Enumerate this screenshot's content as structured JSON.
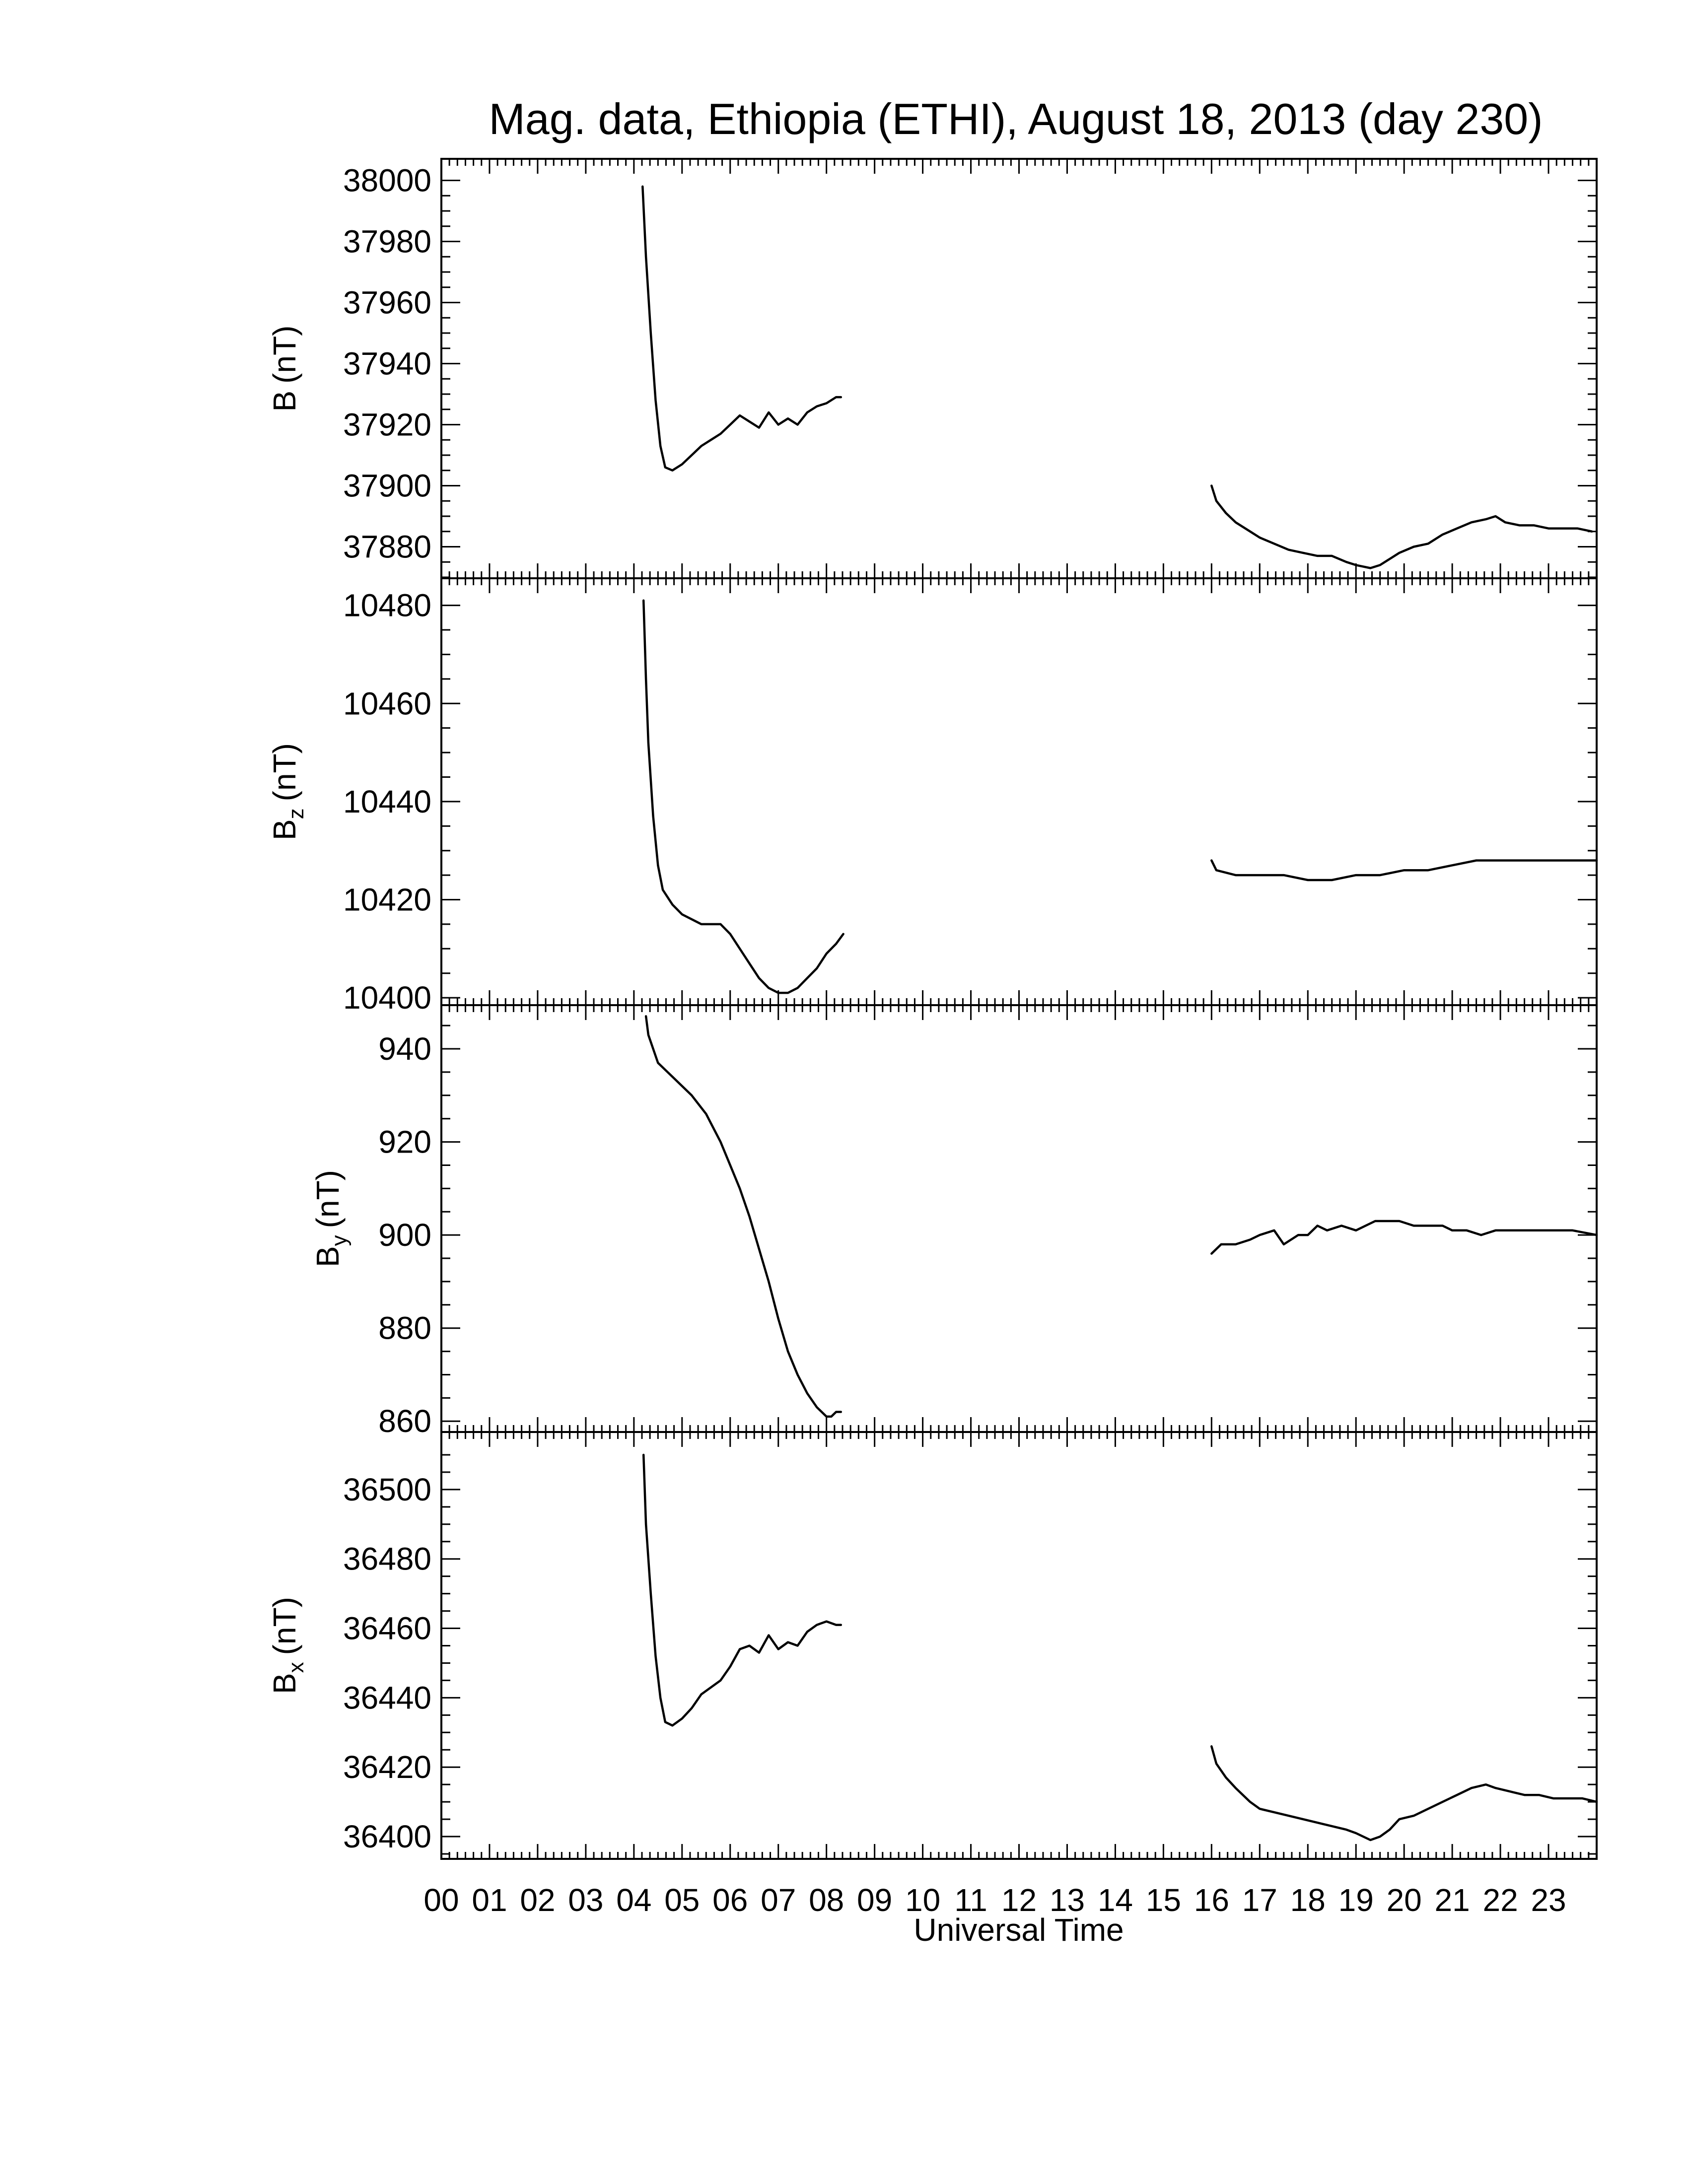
{
  "title": "Mag. data, Ethiopia (ETHI), August 18, 2013 (day 230)",
  "xlabel": "Universal Time",
  "colors": {
    "background": "#ffffff",
    "line": "#000000"
  },
  "chart_data": [
    {
      "type": "line",
      "name": "B",
      "ylabel": "B (nT)",
      "ylabel_main": "B",
      "ylabel_sub": "",
      "ylabel_unit": "(nT)",
      "xlim": [
        0,
        24
      ],
      "ylim": [
        37870,
        38003
      ],
      "yticks": [
        37880,
        37900,
        37920,
        37940,
        37960,
        37980,
        38000
      ],
      "y_minor_step": 5,
      "segments": [
        [
          [
            4.18,
            37998
          ],
          [
            4.25,
            37975
          ],
          [
            4.35,
            37950
          ],
          [
            4.45,
            37928
          ],
          [
            4.55,
            37913
          ],
          [
            4.65,
            37906
          ],
          [
            4.8,
            37905
          ],
          [
            5.0,
            37907
          ],
          [
            5.2,
            37910
          ],
          [
            5.4,
            37913
          ],
          [
            5.6,
            37915
          ],
          [
            5.8,
            37917
          ],
          [
            6.0,
            37920
          ],
          [
            6.2,
            37923
          ],
          [
            6.4,
            37921
          ],
          [
            6.6,
            37919
          ],
          [
            6.8,
            37924
          ],
          [
            7.0,
            37920
          ],
          [
            7.2,
            37922
          ],
          [
            7.4,
            37920
          ],
          [
            7.6,
            37924
          ],
          [
            7.8,
            37926
          ],
          [
            8.0,
            37927
          ],
          [
            8.2,
            37929
          ],
          [
            8.3,
            37929
          ]
        ],
        [
          [
            16.0,
            37900
          ],
          [
            16.1,
            37895
          ],
          [
            16.3,
            37891
          ],
          [
            16.5,
            37888
          ],
          [
            16.8,
            37885
          ],
          [
            17.0,
            37883
          ],
          [
            17.3,
            37881
          ],
          [
            17.6,
            37879
          ],
          [
            17.9,
            37878
          ],
          [
            18.2,
            37877
          ],
          [
            18.5,
            37877
          ],
          [
            18.8,
            37875
          ],
          [
            19.0,
            37874
          ],
          [
            19.3,
            37873
          ],
          [
            19.5,
            37874
          ],
          [
            19.7,
            37876
          ],
          [
            19.9,
            37878
          ],
          [
            20.2,
            37880
          ],
          [
            20.5,
            37881
          ],
          [
            20.8,
            37884
          ],
          [
            21.1,
            37886
          ],
          [
            21.4,
            37888
          ],
          [
            21.7,
            37889
          ],
          [
            21.9,
            37890
          ],
          [
            22.1,
            37888
          ],
          [
            22.4,
            37887
          ],
          [
            22.7,
            37887
          ],
          [
            23.0,
            37886
          ],
          [
            23.3,
            37886
          ],
          [
            23.6,
            37886
          ],
          [
            23.9,
            37885
          ]
        ]
      ]
    },
    {
      "type": "line",
      "name": "Bz",
      "ylabel": "Bz (nT)",
      "ylabel_main": "B",
      "ylabel_sub": "z",
      "ylabel_unit": "(nT)",
      "xlim": [
        0,
        24
      ],
      "ylim": [
        10399,
        10483
      ],
      "yticks": [
        10400,
        10420,
        10440,
        10460,
        10480
      ],
      "y_minor_step": 5,
      "segments": [
        [
          [
            4.2,
            10481
          ],
          [
            4.25,
            10465
          ],
          [
            4.3,
            10452
          ],
          [
            4.4,
            10437
          ],
          [
            4.5,
            10427
          ],
          [
            4.6,
            10422
          ],
          [
            4.8,
            10419
          ],
          [
            5.0,
            10417
          ],
          [
            5.2,
            10416
          ],
          [
            5.4,
            10415
          ],
          [
            5.6,
            10415
          ],
          [
            5.8,
            10415
          ],
          [
            6.0,
            10413
          ],
          [
            6.2,
            10410
          ],
          [
            6.4,
            10407
          ],
          [
            6.6,
            10404
          ],
          [
            6.8,
            10402
          ],
          [
            7.0,
            10401
          ],
          [
            7.2,
            10401
          ],
          [
            7.4,
            10402
          ],
          [
            7.6,
            10404
          ],
          [
            7.8,
            10406
          ],
          [
            8.0,
            10409
          ],
          [
            8.2,
            10411
          ],
          [
            8.35,
            10413
          ]
        ],
        [
          [
            16.0,
            10428
          ],
          [
            16.1,
            10426
          ],
          [
            16.5,
            10425
          ],
          [
            17.0,
            10425
          ],
          [
            17.5,
            10425
          ],
          [
            18.0,
            10424
          ],
          [
            18.5,
            10424
          ],
          [
            19.0,
            10425
          ],
          [
            19.5,
            10425
          ],
          [
            20.0,
            10426
          ],
          [
            20.5,
            10426
          ],
          [
            21.0,
            10427
          ],
          [
            21.5,
            10428
          ],
          [
            22.0,
            10428
          ],
          [
            22.5,
            10428
          ],
          [
            23.0,
            10428
          ],
          [
            23.5,
            10428
          ],
          [
            24.0,
            10428
          ]
        ]
      ]
    },
    {
      "type": "line",
      "name": "By",
      "ylabel": "By (nT)",
      "ylabel_main": "B",
      "ylabel_sub": "y",
      "ylabel_unit": "(nT)",
      "xlim": [
        0,
        24
      ],
      "ylim": [
        858,
        948
      ],
      "yticks": [
        860,
        880,
        900,
        920,
        940
      ],
      "y_minor_step": 5,
      "segments": [
        [
          [
            4.25,
            947
          ],
          [
            4.3,
            943
          ],
          [
            4.5,
            937
          ],
          [
            4.8,
            934
          ],
          [
            5.0,
            932
          ],
          [
            5.2,
            930
          ],
          [
            5.5,
            926
          ],
          [
            5.8,
            920
          ],
          [
            6.0,
            915
          ],
          [
            6.2,
            910
          ],
          [
            6.4,
            904
          ],
          [
            6.6,
            897
          ],
          [
            6.8,
            890
          ],
          [
            7.0,
            882
          ],
          [
            7.2,
            875
          ],
          [
            7.4,
            870
          ],
          [
            7.6,
            866
          ],
          [
            7.8,
            863
          ],
          [
            8.0,
            861
          ],
          [
            8.1,
            861
          ],
          [
            8.2,
            862
          ],
          [
            8.3,
            862
          ]
        ],
        [
          [
            16.0,
            896
          ],
          [
            16.2,
            898
          ],
          [
            16.5,
            898
          ],
          [
            16.8,
            899
          ],
          [
            17.0,
            900
          ],
          [
            17.3,
            901
          ],
          [
            17.5,
            898
          ],
          [
            17.8,
            900
          ],
          [
            18.0,
            900
          ],
          [
            18.2,
            902
          ],
          [
            18.4,
            901
          ],
          [
            18.7,
            902
          ],
          [
            19.0,
            901
          ],
          [
            19.2,
            902
          ],
          [
            19.4,
            903
          ],
          [
            19.6,
            903
          ],
          [
            19.9,
            903
          ],
          [
            20.2,
            902
          ],
          [
            20.5,
            902
          ],
          [
            20.8,
            902
          ],
          [
            21.0,
            901
          ],
          [
            21.3,
            901
          ],
          [
            21.6,
            900
          ],
          [
            21.9,
            901
          ],
          [
            22.2,
            901
          ],
          [
            22.6,
            901
          ],
          [
            23.0,
            901
          ],
          [
            23.5,
            901
          ],
          [
            24.0,
            900
          ]
        ]
      ]
    },
    {
      "type": "line",
      "name": "Bx",
      "ylabel": "Bx (nT)",
      "ylabel_main": "B",
      "ylabel_sub": "x",
      "ylabel_unit": "(nT)",
      "xlim": [
        0,
        24
      ],
      "ylim": [
        36394,
        36513
      ],
      "yticks": [
        36400,
        36420,
        36440,
        36460,
        36480,
        36500
      ],
      "y_minor_step": 5,
      "segments": [
        [
          [
            4.2,
            36510
          ],
          [
            4.25,
            36490
          ],
          [
            4.35,
            36470
          ],
          [
            4.45,
            36452
          ],
          [
            4.55,
            36440
          ],
          [
            4.65,
            36433
          ],
          [
            4.8,
            36432
          ],
          [
            5.0,
            36434
          ],
          [
            5.2,
            36437
          ],
          [
            5.4,
            36441
          ],
          [
            5.6,
            36443
          ],
          [
            5.8,
            36445
          ],
          [
            6.0,
            36449
          ],
          [
            6.2,
            36454
          ],
          [
            6.4,
            36455
          ],
          [
            6.6,
            36453
          ],
          [
            6.8,
            36458
          ],
          [
            7.0,
            36454
          ],
          [
            7.2,
            36456
          ],
          [
            7.4,
            36455
          ],
          [
            7.6,
            36459
          ],
          [
            7.8,
            36461
          ],
          [
            8.0,
            36462
          ],
          [
            8.2,
            36461
          ],
          [
            8.3,
            36461
          ]
        ],
        [
          [
            16.0,
            36426
          ],
          [
            16.1,
            36421
          ],
          [
            16.3,
            36417
          ],
          [
            16.5,
            36414
          ],
          [
            16.8,
            36410
          ],
          [
            17.0,
            36408
          ],
          [
            17.3,
            36407
          ],
          [
            17.6,
            36406
          ],
          [
            17.9,
            36405
          ],
          [
            18.2,
            36404
          ],
          [
            18.5,
            36403
          ],
          [
            18.8,
            36402
          ],
          [
            19.0,
            36401
          ],
          [
            19.3,
            36399
          ],
          [
            19.5,
            36400
          ],
          [
            19.7,
            36402
          ],
          [
            19.9,
            36405
          ],
          [
            20.2,
            36406
          ],
          [
            20.5,
            36408
          ],
          [
            20.8,
            36410
          ],
          [
            21.1,
            36412
          ],
          [
            21.4,
            36414
          ],
          [
            21.7,
            36415
          ],
          [
            21.9,
            36414
          ],
          [
            22.2,
            36413
          ],
          [
            22.5,
            36412
          ],
          [
            22.8,
            36412
          ],
          [
            23.1,
            36411
          ],
          [
            23.4,
            36411
          ],
          [
            23.7,
            36411
          ],
          [
            24.0,
            36410
          ]
        ]
      ]
    }
  ],
  "xticks": [
    0,
    1,
    2,
    3,
    4,
    5,
    6,
    7,
    8,
    9,
    10,
    11,
    12,
    13,
    14,
    15,
    16,
    17,
    18,
    19,
    20,
    21,
    22,
    23
  ],
  "xtick_labels": [
    "00",
    "01",
    "02",
    "03",
    "04",
    "05",
    "06",
    "07",
    "08",
    "09",
    "10",
    "11",
    "12",
    "13",
    "14",
    "15",
    "16",
    "17",
    "18",
    "19",
    "20",
    "21",
    "22",
    "23"
  ]
}
